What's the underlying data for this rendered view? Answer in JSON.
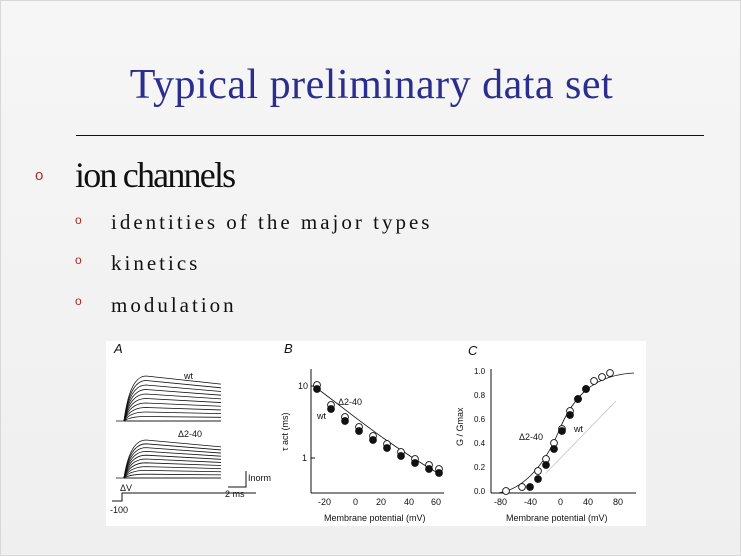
{
  "slide": {
    "title": "Typical preliminary data set",
    "bullet_marker": "o",
    "main_bullet": "ion channels",
    "sub_items": [
      "identities of the major types",
      "kinetics",
      "modulation"
    ]
  },
  "figure": {
    "panel_a": {
      "label": "A",
      "trace_wt": "wt",
      "trace_mut": "Δ2-40",
      "scale_y": "Inorm",
      "scale_x": "2 ms",
      "dv": "ΔV",
      "hold": "-100"
    },
    "panel_b": {
      "label": "B",
      "ylabel": "τ act (ms)",
      "xlabel": "Membrane potential (mV)",
      "legend_mut": "Δ2-40",
      "legend_wt": "wt",
      "yticks": [
        "10",
        "1"
      ],
      "xticks": [
        "-20",
        "0",
        "20",
        "40",
        "60"
      ]
    },
    "panel_c": {
      "label": "C",
      "ylabel": "G / Gmax",
      "xlabel": "Membrane potential (mV)",
      "legend_mut": "Δ2-40",
      "legend_wt": "wt",
      "yticks": [
        "1.0",
        "0.8",
        "0.6",
        "0.4",
        "0.2",
        "0.0"
      ],
      "xticks": [
        "-80",
        "-40",
        "0",
        "40",
        "80"
      ]
    }
  }
}
